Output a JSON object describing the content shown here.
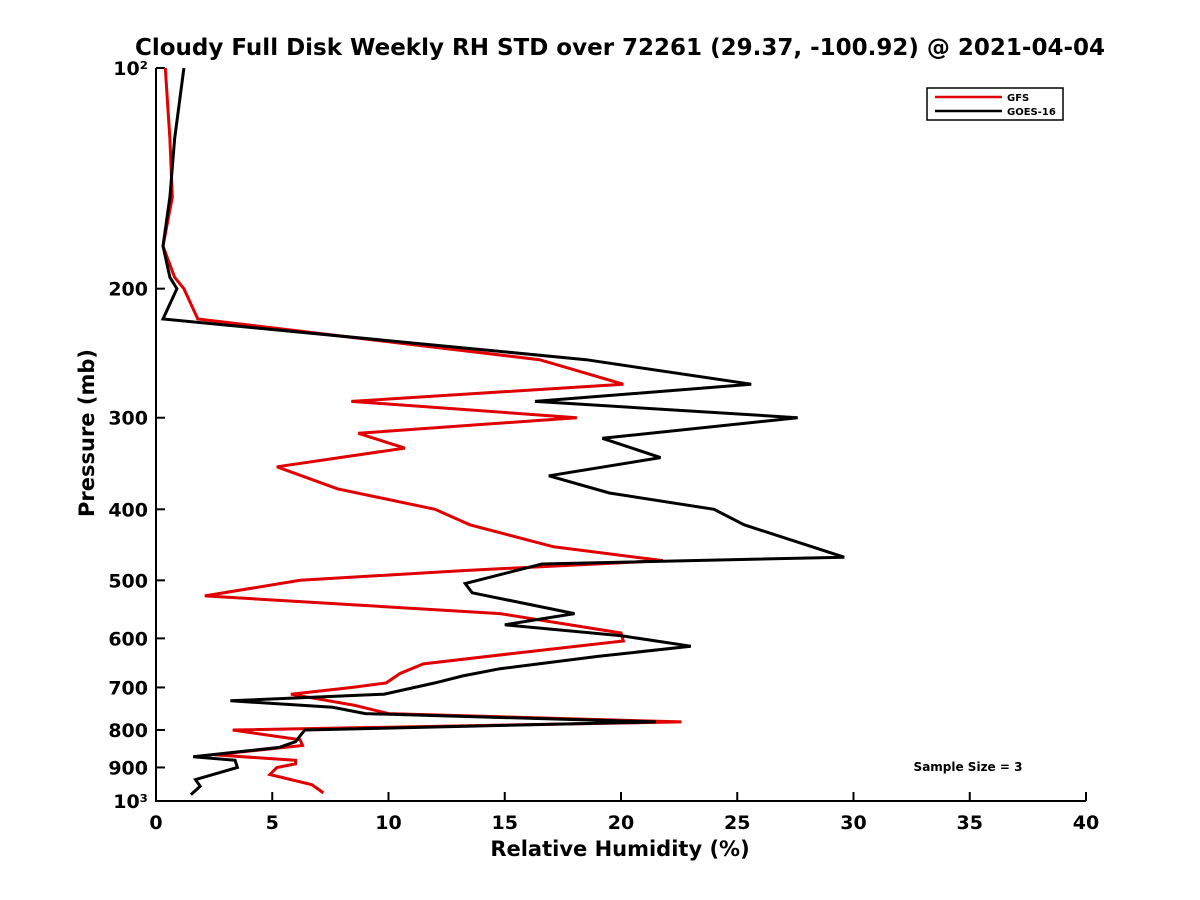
{
  "chart_data": {
    "type": "line",
    "title": "Cloudy Full Disk Weekly RH STD over 72261 (29.37, -100.92) @ 2021-04-04",
    "xlabel": "Relative Humidity (%)",
    "ylabel": "Pressure (mb)",
    "xlim": [
      0,
      40
    ],
    "ylim": [
      100,
      1000
    ],
    "y_scale": "log",
    "y_reversed": true,
    "grid": false,
    "legend_position": "top-right",
    "x_ticks": [
      0,
      5,
      10,
      15,
      20,
      25,
      30,
      35,
      40
    ],
    "x_tick_labels": [
      "0",
      "5",
      "10",
      "15",
      "20",
      "25",
      "30",
      "35",
      "40"
    ],
    "y_ticks": [
      100,
      200,
      300,
      400,
      500,
      600,
      700,
      800,
      900,
      1000
    ],
    "y_tick_labels": [
      "10²",
      "200",
      "300",
      "400",
      "500",
      "600",
      "700",
      "800",
      "900",
      "10³"
    ],
    "annotation": "Sample Size = 3",
    "series": [
      {
        "name": "GFS",
        "color": "#e00000",
        "points": [
          [
            0.4,
            100
          ],
          [
            0.6,
            125
          ],
          [
            0.7,
            150
          ],
          [
            0.3,
            175
          ],
          [
            0.8,
            193
          ],
          [
            1.2,
            200
          ],
          [
            1.8,
            220
          ],
          [
            16.5,
            250
          ],
          [
            20.1,
            270
          ],
          [
            8.4,
            285
          ],
          [
            18.1,
            300
          ],
          [
            8.7,
            315
          ],
          [
            10.7,
            330
          ],
          [
            5.2,
            350
          ],
          [
            7.8,
            375
          ],
          [
            12.0,
            400
          ],
          [
            13.5,
            420
          ],
          [
            17.1,
            450
          ],
          [
            21.8,
            470
          ],
          [
            13.2,
            485
          ],
          [
            6.2,
            500
          ],
          [
            2.1,
            525
          ],
          [
            14.8,
            555
          ],
          [
            20.0,
            590
          ],
          [
            20.1,
            605
          ],
          [
            15.2,
            630
          ],
          [
            11.5,
            650
          ],
          [
            10.5,
            670
          ],
          [
            9.9,
            690
          ],
          [
            8.4,
            700
          ],
          [
            5.8,
            715
          ],
          [
            8.5,
            740
          ],
          [
            10.0,
            760
          ],
          [
            22.6,
            780
          ],
          [
            3.3,
            800
          ],
          [
            6.2,
            825
          ],
          [
            6.3,
            840
          ],
          [
            2.5,
            865
          ],
          [
            6.0,
            880
          ],
          [
            6.0,
            890
          ],
          [
            5.2,
            900
          ],
          [
            4.9,
            920
          ],
          [
            6.7,
            950
          ],
          [
            7.2,
            975
          ]
        ]
      },
      {
        "name": "GOES-16",
        "color": "#000000",
        "points": [
          [
            1.2,
            100
          ],
          [
            0.8,
            125
          ],
          [
            0.6,
            150
          ],
          [
            0.3,
            175
          ],
          [
            0.6,
            193
          ],
          [
            0.9,
            200
          ],
          [
            0.3,
            220
          ],
          [
            18.5,
            250
          ],
          [
            25.6,
            270
          ],
          [
            16.3,
            285
          ],
          [
            27.6,
            300
          ],
          [
            19.2,
            320
          ],
          [
            21.7,
            340
          ],
          [
            16.9,
            360
          ],
          [
            19.5,
            380
          ],
          [
            24.0,
            400
          ],
          [
            25.3,
            420
          ],
          [
            29.6,
            465
          ],
          [
            16.6,
            475
          ],
          [
            13.3,
            505
          ],
          [
            13.6,
            520
          ],
          [
            18.0,
            555
          ],
          [
            15.0,
            575
          ],
          [
            20.0,
            595
          ],
          [
            23.0,
            615
          ],
          [
            19.0,
            635
          ],
          [
            14.8,
            660
          ],
          [
            13.2,
            675
          ],
          [
            12.0,
            690
          ],
          [
            9.8,
            715
          ],
          [
            3.2,
            730
          ],
          [
            7.6,
            745
          ],
          [
            9.0,
            760
          ],
          [
            21.5,
            780
          ],
          [
            6.4,
            800
          ],
          [
            6.0,
            830
          ],
          [
            5.3,
            845
          ],
          [
            1.6,
            870
          ],
          [
            3.4,
            880
          ],
          [
            3.5,
            900
          ],
          [
            1.7,
            935
          ],
          [
            1.9,
            955
          ],
          [
            1.5,
            980
          ]
        ]
      }
    ]
  }
}
